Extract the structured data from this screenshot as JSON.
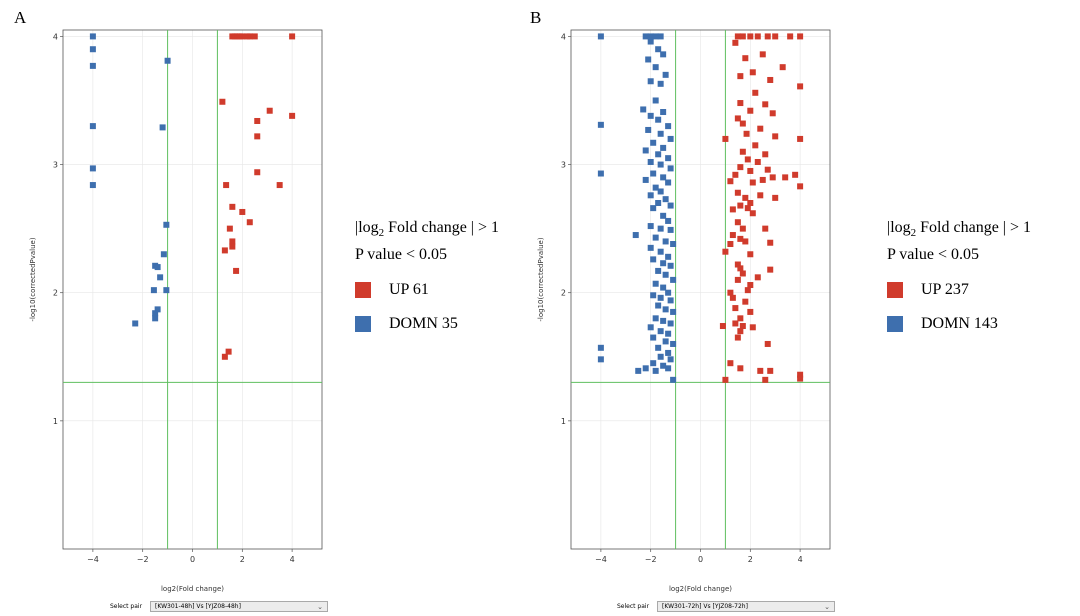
{
  "panels": [
    {
      "letter": "A",
      "select_label": "Select pair",
      "select_value": "[KW301-48h] Vs [YJZ08-48h]",
      "legend": {
        "cond_prefix": "|log",
        "cond_sub": "2",
        "cond_suffix": " Fold change | > 1",
        "pvalue": "P value < 0.05",
        "up": "UP 61",
        "down": "DOMN 35"
      }
    },
    {
      "letter": "B",
      "select_label": "Select pair",
      "select_value": "[KW301-72h] Vs [YJZ08-72h]",
      "legend": {
        "cond_prefix": "|log",
        "cond_sub": "2",
        "cond_suffix": " Fold change | > 1",
        "pvalue": "P value < 0.05",
        "up": "UP 237",
        "down": "DOMN 143"
      }
    }
  ],
  "colors": {
    "up": "#d03b2c",
    "down": "#3e6fae",
    "threshold": "#5fbf5f",
    "grid": "#e6e6e6"
  },
  "chart_data": [
    {
      "type": "scatter",
      "xlabel": "log2(Fold change)",
      "ylabel": "-log10(correctedPvalue)",
      "xlim": [
        -5.2,
        5.2
      ],
      "ylim": [
        0,
        4.05
      ],
      "xticks": [
        -4,
        -2,
        0,
        2,
        4
      ],
      "yticks": [
        1,
        2,
        3,
        4
      ],
      "thresholds": {
        "x": [
          -1,
          1
        ],
        "y": 1.3
      },
      "series": [
        {
          "name": "UP 61",
          "points": [
            [
              1.6,
              4.0
            ],
            [
              2.0,
              4.0
            ],
            [
              2.5,
              4.0
            ],
            [
              4.0,
              4.0
            ],
            [
              1.7,
              4.0
            ],
            [
              2.3,
              4.0
            ],
            [
              1.8,
              4.0
            ],
            [
              1.9,
              4.0
            ],
            [
              2.2,
              4.0
            ],
            [
              1.2,
              3.49
            ],
            [
              3.1,
              3.42
            ],
            [
              4.0,
              3.38
            ],
            [
              2.6,
              3.34
            ],
            [
              2.6,
              3.22
            ],
            [
              2.6,
              2.94
            ],
            [
              1.35,
              2.84
            ],
            [
              3.5,
              2.84
            ],
            [
              1.6,
              2.67
            ],
            [
              2.0,
              2.63
            ],
            [
              2.3,
              2.55
            ],
            [
              1.5,
              2.5
            ],
            [
              1.6,
              2.4
            ],
            [
              1.6,
              2.36
            ],
            [
              1.3,
              2.33
            ],
            [
              1.75,
              2.17
            ],
            [
              1.45,
              1.54
            ],
            [
              1.3,
              1.5
            ]
          ]
        },
        {
          "name": "DOMN 35",
          "points": [
            [
              -4.0,
              4.0
            ],
            [
              -4.0,
              3.9
            ],
            [
              -4.0,
              3.77
            ],
            [
              -1.0,
              3.81
            ],
            [
              -4.0,
              3.3
            ],
            [
              -1.2,
              3.29
            ],
            [
              -4.0,
              2.97
            ],
            [
              -4.0,
              2.84
            ],
            [
              -1.05,
              2.53
            ],
            [
              -1.15,
              2.3
            ],
            [
              -1.5,
              2.21
            ],
            [
              -1.4,
              2.2
            ],
            [
              -1.3,
              2.12
            ],
            [
              -1.55,
              2.02
            ],
            [
              -1.05,
              2.02
            ],
            [
              -1.4,
              1.87
            ],
            [
              -1.5,
              1.84
            ],
            [
              -1.5,
              1.8
            ],
            [
              -2.3,
              1.76
            ]
          ]
        }
      ]
    },
    {
      "type": "scatter",
      "xlabel": "log2(Fold change)",
      "ylabel": "-log10(correctedPvalue)",
      "xlim": [
        -5.2,
        5.2
      ],
      "ylim": [
        0,
        4.05
      ],
      "xticks": [
        -4,
        -2,
        0,
        2,
        4
      ],
      "yticks": [
        1,
        2,
        3,
        4
      ],
      "thresholds": {
        "x": [
          -1,
          1
        ],
        "y": 1.3
      },
      "series": [
        {
          "name": "UP 237",
          "points": [
            [
              1.5,
              4.0
            ],
            [
              1.7,
              4.0
            ],
            [
              2.0,
              4.0
            ],
            [
              2.3,
              4.0
            ],
            [
              2.7,
              4.0
            ],
            [
              3.0,
              4.0
            ],
            [
              3.6,
              4.0
            ],
            [
              4.0,
              4.0
            ],
            [
              1.4,
              3.95
            ],
            [
              2.5,
              3.86
            ],
            [
              1.8,
              3.83
            ],
            [
              3.3,
              3.76
            ],
            [
              2.1,
              3.72
            ],
            [
              1.6,
              3.69
            ],
            [
              2.8,
              3.66
            ],
            [
              4.0,
              3.61
            ],
            [
              2.2,
              3.56
            ],
            [
              1.6,
              3.48
            ],
            [
              2.6,
              3.47
            ],
            [
              2.0,
              3.42
            ],
            [
              2.9,
              3.4
            ],
            [
              1.5,
              3.36
            ],
            [
              1.7,
              3.32
            ],
            [
              2.4,
              3.28
            ],
            [
              1.85,
              3.24
            ],
            [
              3.0,
              3.22
            ],
            [
              4.0,
              3.2
            ],
            [
              1.0,
              3.2
            ],
            [
              2.2,
              3.15
            ],
            [
              1.7,
              3.1
            ],
            [
              2.6,
              3.08
            ],
            [
              1.9,
              3.04
            ],
            [
              2.3,
              3.02
            ],
            [
              1.6,
              2.98
            ],
            [
              2.7,
              2.96
            ],
            [
              2.0,
              2.95
            ],
            [
              1.4,
              2.92
            ],
            [
              3.8,
              2.92
            ],
            [
              2.9,
              2.9
            ],
            [
              2.5,
              2.88
            ],
            [
              3.4,
              2.9
            ],
            [
              1.2,
              2.87
            ],
            [
              2.1,
              2.86
            ],
            [
              4.0,
              2.83
            ],
            [
              1.5,
              2.78
            ],
            [
              2.4,
              2.76
            ],
            [
              1.8,
              2.74
            ],
            [
              3.0,
              2.74
            ],
            [
              2.0,
              2.7
            ],
            [
              1.6,
              2.68
            ],
            [
              1.3,
              2.65
            ],
            [
              1.9,
              2.66
            ],
            [
              2.1,
              2.62
            ],
            [
              1.5,
              2.55
            ],
            [
              1.7,
              2.5
            ],
            [
              2.6,
              2.5
            ],
            [
              1.3,
              2.45
            ],
            [
              1.6,
              2.42
            ],
            [
              1.8,
              2.4
            ],
            [
              2.8,
              2.39
            ],
            [
              1.2,
              2.38
            ],
            [
              1.0,
              2.32
            ],
            [
              2.0,
              2.3
            ],
            [
              1.5,
              2.22
            ],
            [
              1.6,
              2.19
            ],
            [
              2.8,
              2.18
            ],
            [
              1.7,
              2.15
            ],
            [
              2.3,
              2.12
            ],
            [
              1.5,
              2.1
            ],
            [
              2.0,
              2.06
            ],
            [
              1.9,
              2.02
            ],
            [
              1.2,
              2.0
            ],
            [
              1.3,
              1.96
            ],
            [
              1.8,
              1.93
            ],
            [
              1.4,
              1.88
            ],
            [
              2.0,
              1.85
            ],
            [
              1.6,
              1.8
            ],
            [
              1.4,
              1.76
            ],
            [
              0.9,
              1.74
            ],
            [
              1.7,
              1.74
            ],
            [
              2.1,
              1.73
            ],
            [
              1.6,
              1.7
            ],
            [
              1.5,
              1.65
            ],
            [
              2.7,
              1.6
            ],
            [
              1.2,
              1.45
            ],
            [
              1.6,
              1.41
            ],
            [
              2.4,
              1.39
            ],
            [
              2.8,
              1.39
            ],
            [
              4.0,
              1.36
            ],
            [
              4.0,
              1.33
            ],
            [
              1.0,
              1.32
            ],
            [
              2.6,
              1.32
            ]
          ]
        },
        {
          "name": "DOMN 143",
          "points": [
            [
              -2.2,
              4.0
            ],
            [
              -2.0,
              4.0
            ],
            [
              -1.8,
              4.0
            ],
            [
              -1.6,
              4.0
            ],
            [
              -4.0,
              4.0
            ],
            [
              -2.0,
              3.96
            ],
            [
              -1.7,
              3.9
            ],
            [
              -1.5,
              3.86
            ],
            [
              -2.1,
              3.82
            ],
            [
              -1.8,
              3.76
            ],
            [
              -1.4,
              3.7
            ],
            [
              -2.0,
              3.65
            ],
            [
              -1.6,
              3.63
            ],
            [
              -1.8,
              3.5
            ],
            [
              -2.3,
              3.43
            ],
            [
              -1.5,
              3.41
            ],
            [
              -2.0,
              3.38
            ],
            [
              -1.7,
              3.35
            ],
            [
              -4.0,
              3.31
            ],
            [
              -1.3,
              3.3
            ],
            [
              -2.1,
              3.27
            ],
            [
              -1.6,
              3.24
            ],
            [
              -1.2,
              3.2
            ],
            [
              -1.9,
              3.17
            ],
            [
              -1.5,
              3.13
            ],
            [
              -2.2,
              3.11
            ],
            [
              -1.7,
              3.08
            ],
            [
              -1.3,
              3.05
            ],
            [
              -2.0,
              3.02
            ],
            [
              -1.6,
              3.0
            ],
            [
              -1.2,
              2.97
            ],
            [
              -4.0,
              2.93
            ],
            [
              -1.9,
              2.93
            ],
            [
              -1.5,
              2.9
            ],
            [
              -2.2,
              2.88
            ],
            [
              -1.3,
              2.86
            ],
            [
              -1.8,
              2.82
            ],
            [
              -1.6,
              2.79
            ],
            [
              -2.0,
              2.76
            ],
            [
              -1.4,
              2.73
            ],
            [
              -1.7,
              2.7
            ],
            [
              -1.2,
              2.68
            ],
            [
              -1.9,
              2.66
            ],
            [
              -1.5,
              2.6
            ],
            [
              -1.3,
              2.56
            ],
            [
              -2.0,
              2.52
            ],
            [
              -1.6,
              2.5
            ],
            [
              -1.2,
              2.49
            ],
            [
              -2.6,
              2.45
            ],
            [
              -1.8,
              2.43
            ],
            [
              -1.4,
              2.4
            ],
            [
              -1.1,
              2.38
            ],
            [
              -2.0,
              2.35
            ],
            [
              -1.6,
              2.32
            ],
            [
              -1.3,
              2.28
            ],
            [
              -1.9,
              2.26
            ],
            [
              -1.5,
              2.23
            ],
            [
              -1.2,
              2.21
            ],
            [
              -1.7,
              2.17
            ],
            [
              -1.4,
              2.14
            ],
            [
              -1.1,
              2.1
            ],
            [
              -1.8,
              2.07
            ],
            [
              -1.5,
              2.04
            ],
            [
              -1.3,
              2.0
            ],
            [
              -1.9,
              1.98
            ],
            [
              -1.6,
              1.96
            ],
            [
              -1.2,
              1.94
            ],
            [
              -1.7,
              1.9
            ],
            [
              -1.4,
              1.87
            ],
            [
              -1.1,
              1.85
            ],
            [
              -1.8,
              1.8
            ],
            [
              -1.5,
              1.78
            ],
            [
              -1.2,
              1.76
            ],
            [
              -2.0,
              1.73
            ],
            [
              -1.6,
              1.7
            ],
            [
              -1.3,
              1.68
            ],
            [
              -1.9,
              1.65
            ],
            [
              -1.4,
              1.62
            ],
            [
              -1.1,
              1.6
            ],
            [
              -1.7,
              1.57
            ],
            [
              -4.0,
              1.57
            ],
            [
              -1.3,
              1.53
            ],
            [
              -1.6,
              1.5
            ],
            [
              -4.0,
              1.48
            ],
            [
              -1.2,
              1.48
            ],
            [
              -1.9,
              1.45
            ],
            [
              -1.5,
              1.43
            ],
            [
              -2.2,
              1.41
            ],
            [
              -1.3,
              1.41
            ],
            [
              -2.5,
              1.39
            ],
            [
              -1.8,
              1.39
            ],
            [
              -1.1,
              1.32
            ]
          ]
        }
      ]
    }
  ]
}
